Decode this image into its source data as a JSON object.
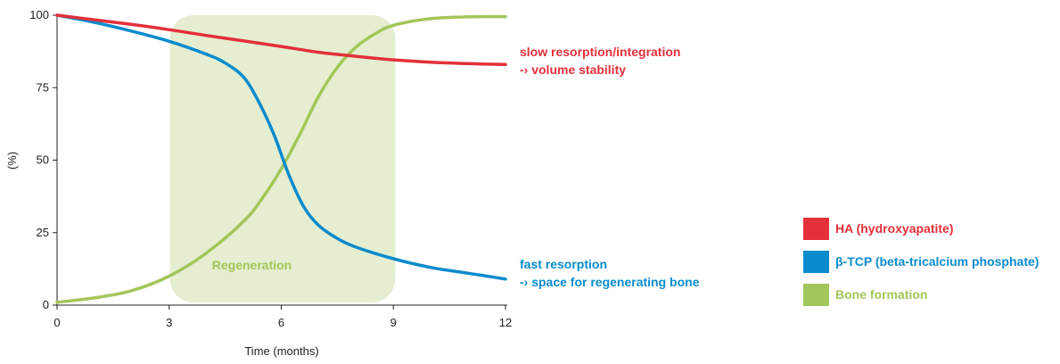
{
  "chart_data": {
    "type": "line",
    "xlabel": "Time (months)",
    "ylabel": "(%)",
    "xlim": [
      0,
      12
    ],
    "ylim": [
      0,
      100
    ],
    "x_ticks": [
      "0",
      "3",
      "6",
      "9",
      "12"
    ],
    "y_ticks": [
      "0",
      "25",
      "50",
      "75",
      "100"
    ],
    "grid": false,
    "legend_position": "right",
    "region": {
      "label": "Regeneration",
      "x_start": 3,
      "x_end": 9,
      "y_start": 0,
      "y_end": 100,
      "color": "#e5eed0",
      "label_color": "#a3c65a"
    },
    "series": [
      {
        "name": "HA (hydroxyapatite)",
        "color": "#e3303a",
        "x": [
          0,
          1,
          2,
          3,
          4,
          5,
          6,
          7,
          8,
          9,
          10,
          11,
          12
        ],
        "y": [
          100,
          98.4,
          96.8,
          95,
          93,
          91.1,
          89.2,
          87.2,
          85.8,
          84.6,
          83.8,
          83.3,
          83
        ]
      },
      {
        "name": "β-TCP (beta-tricalcium phosphate)",
        "color": "#0a8bcd",
        "x": [
          0,
          1,
          2,
          3,
          4,
          4.5,
          5,
          5.4,
          5.8,
          6.2,
          6.6,
          7,
          7.5,
          8,
          9,
          10,
          11,
          12
        ],
        "y": [
          100,
          97.5,
          94.5,
          91,
          86.5,
          83.5,
          78.5,
          70,
          59,
          45,
          34,
          27.5,
          23,
          20,
          16,
          13,
          11,
          9
        ]
      },
      {
        "name": "Bone formation",
        "color": "#a3c65a",
        "x": [
          0,
          1,
          2,
          3,
          4,
          5,
          5.5,
          6,
          6.5,
          7,
          7.5,
          8,
          8.5,
          9,
          10,
          11,
          12
        ],
        "y": [
          1,
          2.5,
          5,
          10,
          18,
          29,
          37,
          47,
          59,
          72,
          82,
          89,
          93.5,
          96.5,
          98.8,
          99.4,
          99.5
        ]
      }
    ],
    "annotations": [
      {
        "lines": [
          "slow resorption/integration",
          "-› volume stability"
        ],
        "color": "#e3303a"
      },
      {
        "lines": [
          "fast resorption",
          "-› space for regenerating bone"
        ],
        "color": "#0a8bcd"
      }
    ]
  }
}
